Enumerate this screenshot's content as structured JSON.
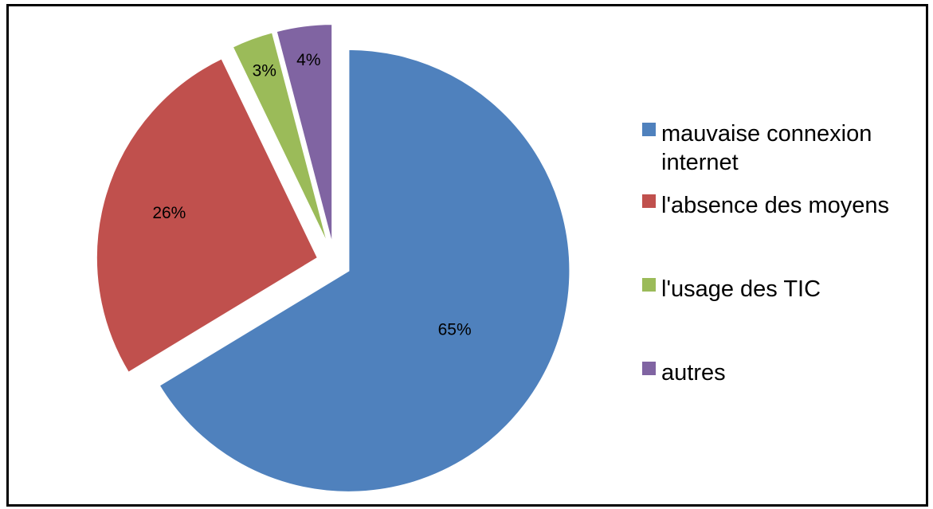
{
  "chart_data": {
    "type": "pie",
    "categories": [
      "mauvaise connexion internet",
      "l'absence des moyens",
      "l'usage des TIC",
      "autres"
    ],
    "values": [
      65,
      26,
      3,
      4
    ],
    "value_labels": [
      "65%",
      "26%",
      "3%",
      "4%"
    ],
    "colors": [
      "#4F81BD",
      "#C0504D",
      "#9BBB59",
      "#8064A2"
    ],
    "legend": "right"
  }
}
